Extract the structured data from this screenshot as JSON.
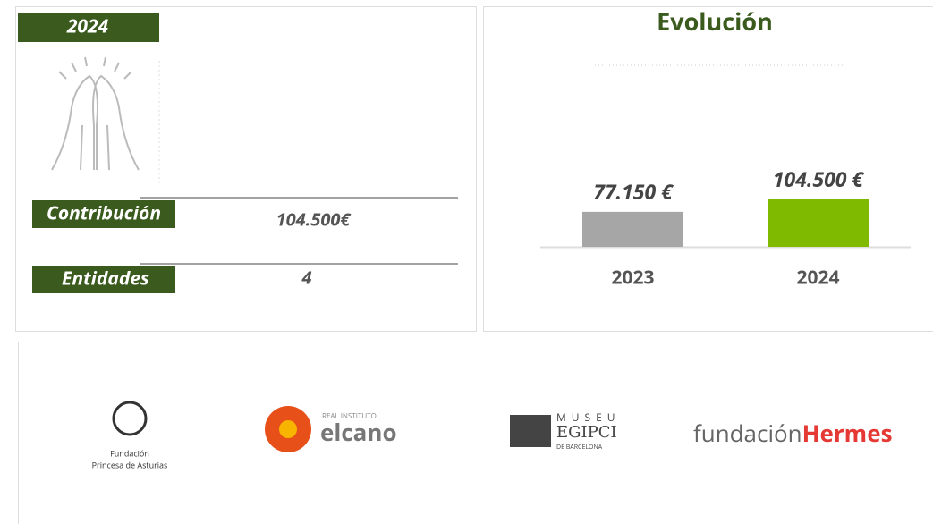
{
  "summary": {
    "year": "2024",
    "contribution_label": "Contribución",
    "contribution_value": "104.500€",
    "entities_label": "Entidades",
    "entities_value": "4"
  },
  "chart_data": {
    "type": "bar",
    "title": "Evolución",
    "categories": [
      "2023",
      "2024"
    ],
    "values": [
      77150,
      104500
    ],
    "value_labels": [
      "77.150 €",
      "104.500 €"
    ],
    "colors": [
      "#a6a6a6",
      "#7fba00"
    ]
  },
  "logos": [
    {
      "lines": [
        "Fundación",
        "Princesa de Asturias"
      ]
    },
    {
      "lines": [
        "REAL INSTITUTO",
        "elcano"
      ]
    },
    {
      "lines": [
        "MUSEU",
        "EGIPCI",
        "DE BARCELONA"
      ]
    },
    {
      "lines": [
        "fundación",
        "Hermes"
      ]
    }
  ]
}
